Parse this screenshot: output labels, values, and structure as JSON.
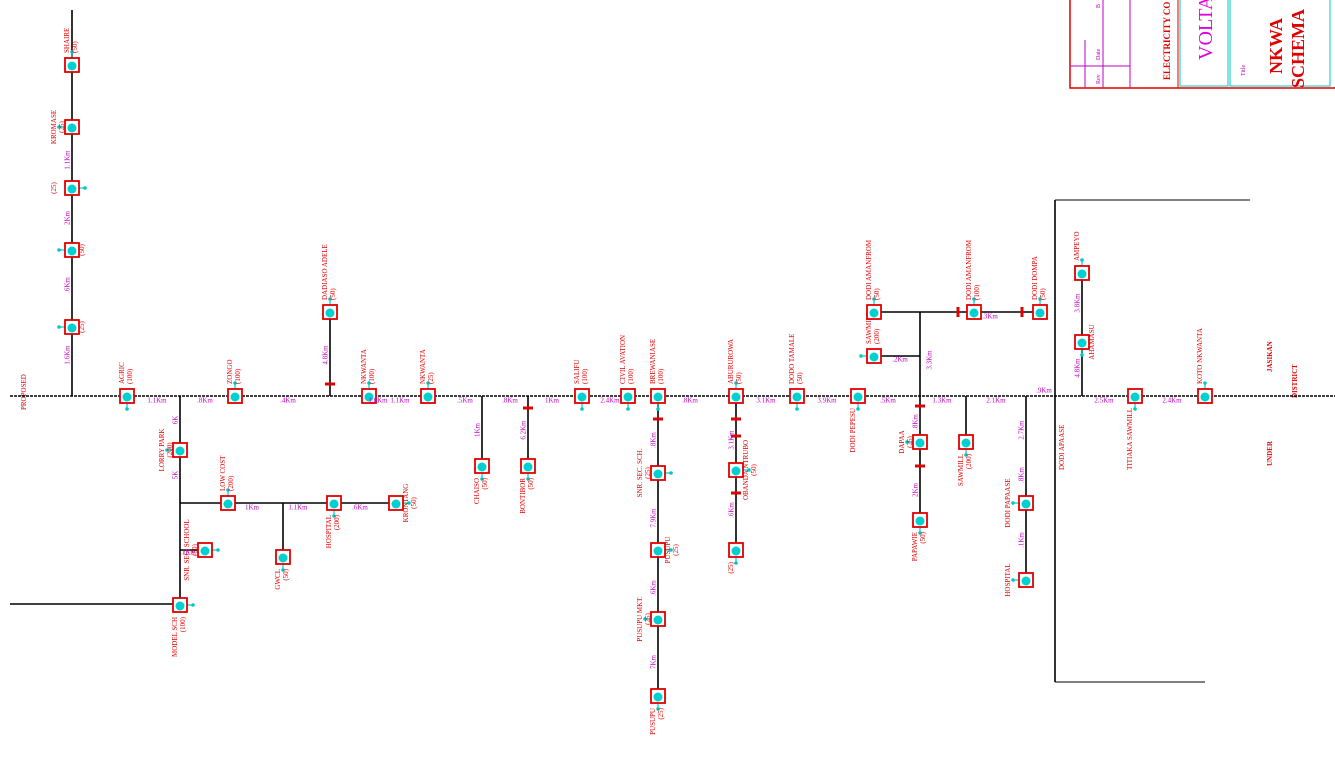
{
  "title_block": {
    "company": "ELECTRICITY CO",
    "region": "VOLTA",
    "title_label": "Title",
    "title_line1": "NKWA",
    "title_line2": "SCHEMA",
    "rev": "Rev",
    "date": "Date",
    "by": "B"
  },
  "notes": {
    "proposed": "PROPOSED",
    "jasikan": "JASIKAN",
    "district": "DISTRICT",
    "under": "UNDER",
    "dodi_apaase": "DODI APAASE"
  },
  "nodes": [
    {
      "label": "SHAIRE",
      "rating": "(50)"
    },
    {
      "label": "KROMASE",
      "rating": "(25)"
    },
    {
      "label": "(25)",
      "rating": ""
    },
    {
      "label": "(50)",
      "rating": ""
    },
    {
      "label": "(25)",
      "rating": ""
    },
    {
      "label": "AGRIC",
      "rating": "(100)"
    },
    {
      "label": "ZONGO",
      "rating": "(100)"
    },
    {
      "label": "DADIASO ADELE",
      "rating": "(50)"
    },
    {
      "label": "NKWANTA",
      "rating": "(100)"
    },
    {
      "label": "NKWANTA",
      "rating": "(25)"
    },
    {
      "label": "SALIFU",
      "rating": "(100)"
    },
    {
      "label": "CIVIL AVATION",
      "rating": "(100)"
    },
    {
      "label": "BREWANIASE",
      "rating": "(100)"
    },
    {
      "label": "ABURUROWA",
      "rating": "(50)"
    },
    {
      "label": "DODO TAMALE",
      "rating": "(50)"
    },
    {
      "label": "DODI PEPESU",
      "rating": ""
    },
    {
      "label": "SAWMILL",
      "rating": "(200)"
    },
    {
      "label": "DODI AMANFROM",
      "rating": "(50)"
    },
    {
      "label": "DODI AMANFROM",
      "rating": "(100)"
    },
    {
      "label": "DODI DOMPA",
      "rating": "(50)"
    },
    {
      "label": "AMPEYO",
      "rating": ""
    },
    {
      "label": "AHAMASU",
      "rating": ""
    },
    {
      "label": "TITIAKA SAWMILL",
      "rating": ""
    },
    {
      "label": "KOTO NKWANTA",
      "rating": ""
    },
    {
      "label": "LORRY PARK",
      "rating": "(200)"
    },
    {
      "label": "LOW COST",
      "rating": "(200)"
    },
    {
      "label": "SNR. SEC. SCHOOL",
      "rating": "(50)"
    },
    {
      "label": "GWCL",
      "rating": "(50)"
    },
    {
      "label": "HOSPITAL",
      "rating": "(200)"
    },
    {
      "label": "KRONTANG",
      "rating": "(50)"
    },
    {
      "label": "MODEL SCH",
      "rating": "(100)"
    },
    {
      "label": "CHAISO",
      "rating": "(50)"
    },
    {
      "label": "BONTIBOR",
      "rating": "(50)"
    },
    {
      "label": "SNR. SEC. SCH.",
      "rating": "(25)"
    },
    {
      "label": "PUSUPU",
      "rating": "(25)"
    },
    {
      "label": "PUSUPU MKT.",
      "rating": "(25)"
    },
    {
      "label": "PUSUPU",
      "rating": "(25)"
    },
    {
      "label": "OBANDA NTRUBO",
      "rating": "(50)"
    },
    {
      "label": "(25)",
      "rating": ""
    },
    {
      "label": "DAPAA",
      "rating": "(25)"
    },
    {
      "label": "PAPAWIE",
      "rating": "(50)"
    },
    {
      "label": "SAWMILL",
      "rating": "(200)"
    },
    {
      "label": "DODI PAPAASE",
      "rating": ""
    },
    {
      "label": "HOSPITAL",
      "rating": ""
    }
  ],
  "distances": [
    "1.1Km",
    "2Km",
    ".6Km",
    "1.6Km",
    "1.1Km",
    ".8Km",
    ".4Km",
    "4.8Km",
    "1.6Km",
    "1.1Km",
    ".5Km",
    ".8Km",
    "1Km",
    "2.4Km",
    ".8Km",
    "3.1Km",
    "3.9Km",
    ".5Km",
    "1.3Km",
    "2.1Km",
    ".9Km",
    "2.5Km",
    "2.4Km",
    "6K",
    "5K",
    "1Km",
    ".1Km",
    "1.1Km",
    ".6Km",
    "1Km",
    "6.2Km",
    ".8Km",
    "7.9Km",
    ".6Km",
    "7Km",
    "3.1Km",
    ".6Km",
    "3.3Km",
    ".2Km",
    ".3Km",
    "2Km",
    ".8Km",
    "3.8Km",
    "4.8Km",
    "2.7Km",
    ".8Km",
    ".1Km"
  ]
}
